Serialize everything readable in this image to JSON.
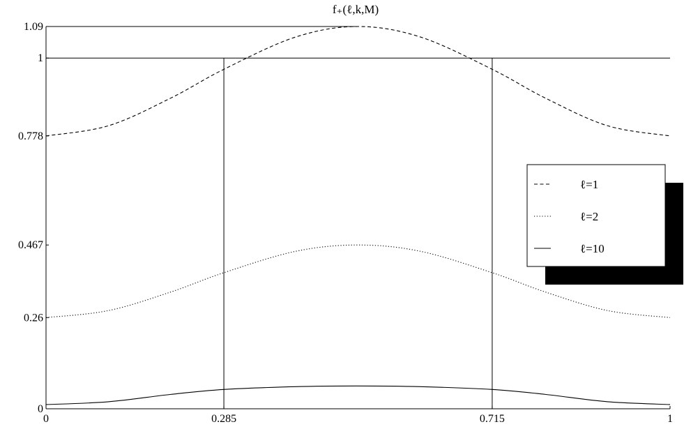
{
  "chart_data": {
    "type": "line",
    "title": "f₊(ℓ,k,M)",
    "xlabel": "",
    "ylabel": "",
    "xlim": [
      0,
      1
    ],
    "ylim": [
      0,
      1.09
    ],
    "x_ticks": [
      0,
      0.285,
      0.715,
      1
    ],
    "x_tick_labels": [
      "0",
      "0.285",
      "0.715",
      "1"
    ],
    "y_ticks": [
      0,
      0.26,
      0.467,
      0.778,
      1,
      1.09
    ],
    "y_tick_labels": [
      "0",
      "0.26",
      "0.467",
      "0.778",
      "1",
      "1.09"
    ],
    "reference_lines": {
      "horizontal": [
        1,
        1.09
      ],
      "vertical": [
        0.285,
        0.715
      ]
    },
    "legend_position": "right",
    "series": [
      {
        "name": "ℓ=1",
        "style": "dashed",
        "x": [
          0,
          0.1,
          0.2,
          0.285,
          0.4,
          0.5,
          0.6,
          0.715,
          0.8,
          0.9,
          1
        ],
        "y": [
          0.778,
          0.807,
          0.886,
          0.968,
          1.06,
          1.09,
          1.06,
          0.968,
          0.886,
          0.807,
          0.778
        ]
      },
      {
        "name": "ℓ=2",
        "style": "dotted",
        "x": [
          0,
          0.1,
          0.2,
          0.285,
          0.4,
          0.5,
          0.6,
          0.715,
          0.8,
          0.9,
          1
        ],
        "y": [
          0.26,
          0.28,
          0.333,
          0.388,
          0.449,
          0.467,
          0.449,
          0.388,
          0.333,
          0.28,
          0.26
        ]
      },
      {
        "name": "ℓ=10",
        "style": "solid",
        "x": [
          0,
          0.1,
          0.2,
          0.285,
          0.4,
          0.5,
          0.6,
          0.715,
          0.8,
          0.9,
          1
        ],
        "y": [
          0.012,
          0.02,
          0.041,
          0.055,
          0.063,
          0.065,
          0.063,
          0.055,
          0.041,
          0.02,
          0.012
        ]
      }
    ],
    "colors": {
      "line": "#000000",
      "shadow": "#000000",
      "background": "#ffffff"
    }
  }
}
